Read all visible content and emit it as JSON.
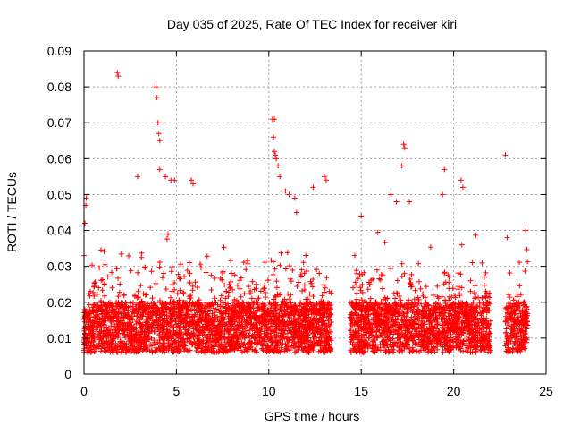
{
  "chart_data": {
    "type": "scatter",
    "title": "Day 035 of 2025, Rate Of TEC Index for receiver kiri",
    "xlabel": "GPS time / hours",
    "ylabel": "ROTI / TECUs",
    "xlim": [
      0,
      25
    ],
    "ylim": [
      0,
      0.09
    ],
    "x_ticks": [
      "0",
      "5",
      "10",
      "15",
      "20",
      "25"
    ],
    "y_ticks": [
      "0",
      "0.01",
      "0.02",
      "0.03",
      "0.04",
      "0.05",
      "0.06",
      "0.07",
      "0.08",
      "0.09"
    ],
    "grid": true,
    "marker": "+",
    "color": "#ff0000",
    "data_gaps_hours": [
      [
        13.4,
        14.4
      ],
      [
        22.0,
        22.8
      ]
    ],
    "series": [
      {
        "points": [
          [
            0.0,
            0.033
          ],
          [
            0.05,
            0.042
          ],
          [
            0.1,
            0.047
          ],
          [
            0.12,
            0.049
          ],
          [
            1.8,
            0.084
          ],
          [
            1.85,
            0.083
          ],
          [
            2.9,
            0.055
          ],
          [
            3.9,
            0.08
          ],
          [
            3.95,
            0.077
          ],
          [
            4.0,
            0.07
          ],
          [
            4.05,
            0.067
          ],
          [
            4.1,
            0.065
          ],
          [
            4.1,
            0.057
          ],
          [
            4.4,
            0.055
          ],
          [
            4.7,
            0.054
          ],
          [
            4.9,
            0.054
          ],
          [
            5.8,
            0.054
          ],
          [
            5.9,
            0.053
          ],
          [
            10.2,
            0.071
          ],
          [
            10.3,
            0.071
          ],
          [
            10.25,
            0.066
          ],
          [
            10.3,
            0.062
          ],
          [
            10.35,
            0.061
          ],
          [
            10.4,
            0.06
          ],
          [
            10.5,
            0.058
          ],
          [
            10.6,
            0.055
          ],
          [
            10.9,
            0.051
          ],
          [
            11.1,
            0.05
          ],
          [
            11.4,
            0.049
          ],
          [
            11.5,
            0.045
          ],
          [
            12.4,
            0.052
          ],
          [
            13.0,
            0.055
          ],
          [
            13.1,
            0.054
          ],
          [
            15.0,
            0.044
          ],
          [
            16.6,
            0.05
          ],
          [
            16.9,
            0.048
          ],
          [
            17.2,
            0.058
          ],
          [
            17.3,
            0.064
          ],
          [
            17.35,
            0.063
          ],
          [
            17.6,
            0.048
          ],
          [
            19.4,
            0.05
          ],
          [
            19.5,
            0.057
          ],
          [
            20.4,
            0.054
          ],
          [
            20.5,
            0.052
          ],
          [
            22.8,
            0.061
          ],
          [
            22.9,
            0.038
          ],
          [
            23.9,
            0.04
          ]
        ]
      }
    ]
  }
}
